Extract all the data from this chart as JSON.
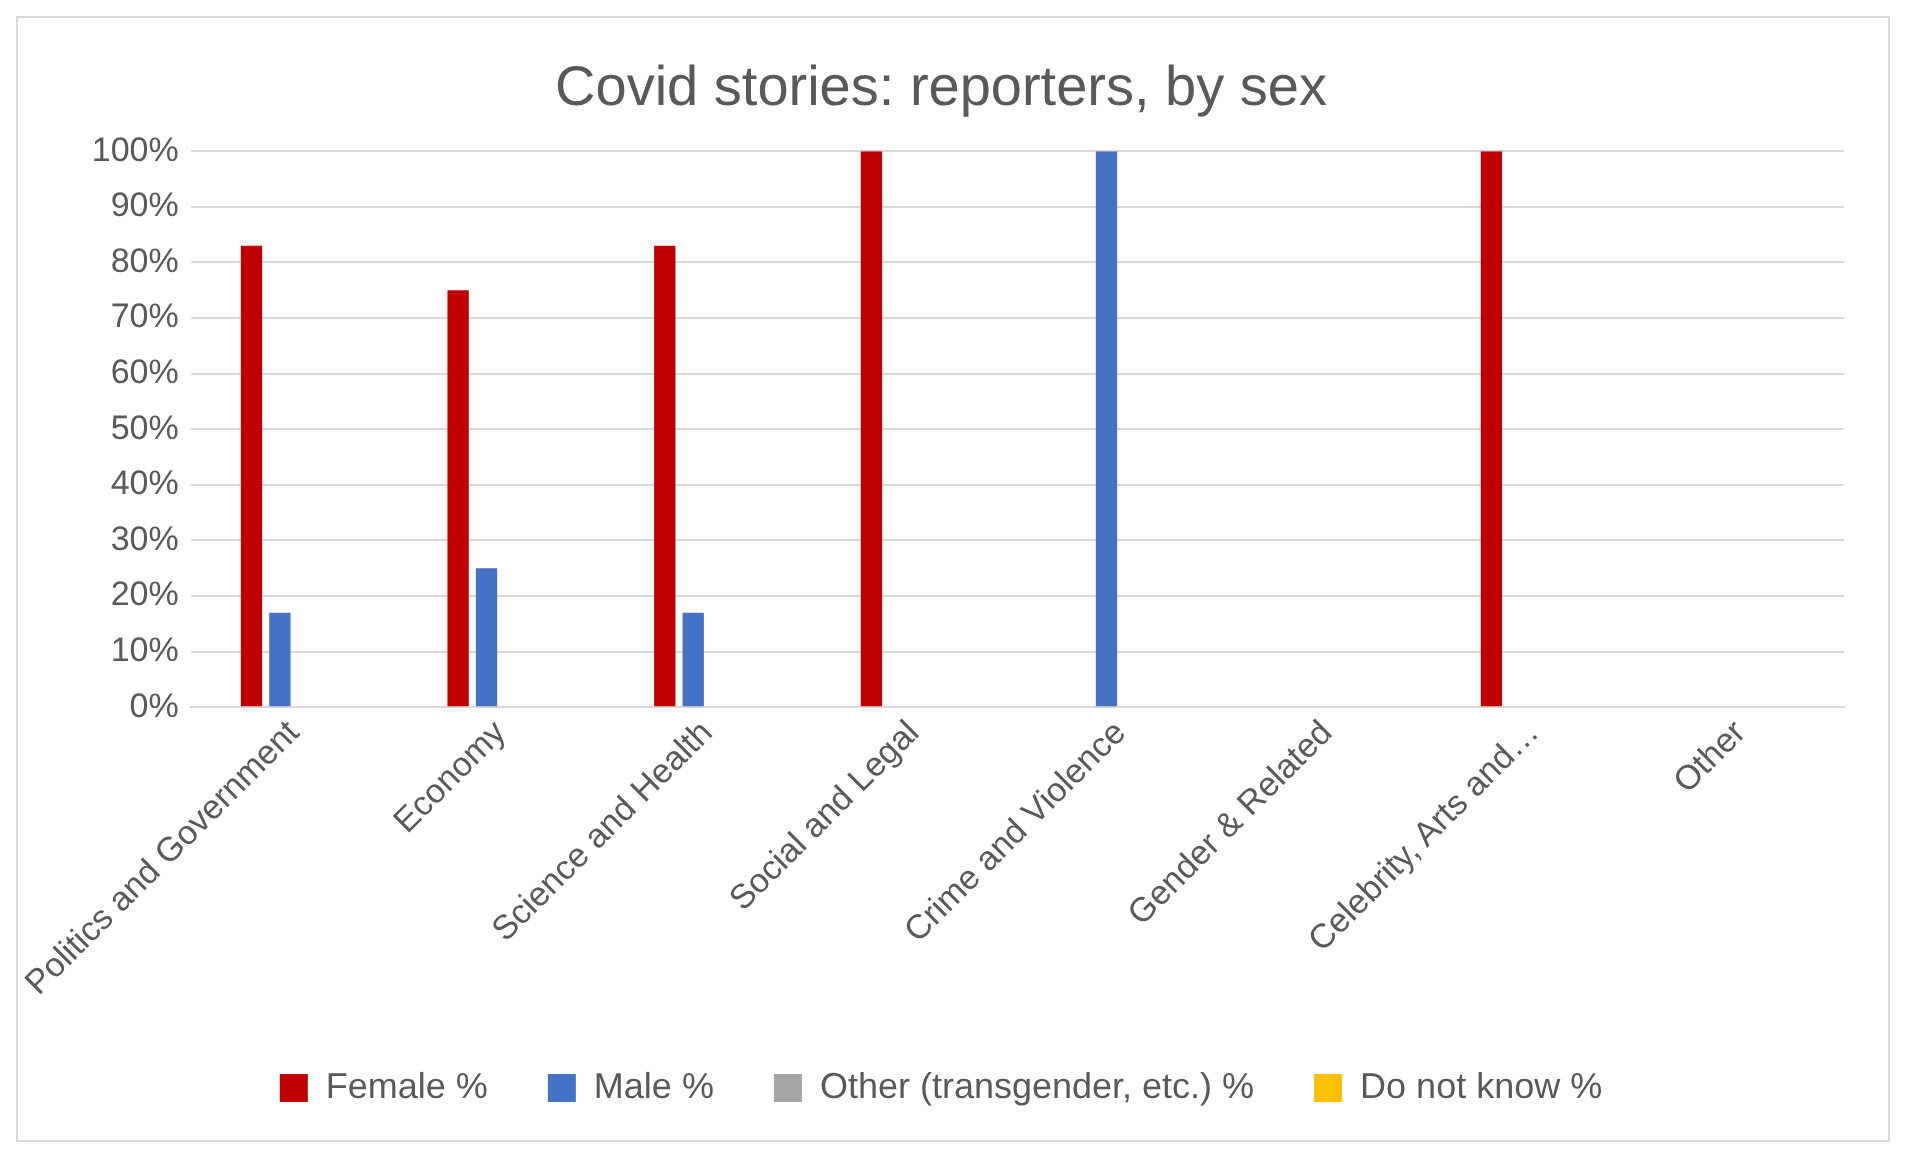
{
  "chart_data": {
    "type": "bar",
    "title": "Covid stories: reporters, by sex",
    "categories": [
      "Politics and Government",
      "Economy",
      "Science and Health",
      "Social and Legal",
      "Crime and Violence",
      "Gender & Related",
      "Celebrity, Arts and…",
      "Other"
    ],
    "series": [
      {
        "name": "Female %",
        "color": "#c00000",
        "values": [
          83,
          75,
          83,
          100,
          null,
          null,
          100,
          null
        ]
      },
      {
        "name": "Male %",
        "color": "#4472c4",
        "values": [
          17,
          25,
          17,
          null,
          100,
          null,
          null,
          null
        ]
      },
      {
        "name": "Other (transgender, etc.) %",
        "color": "#a5a5a5",
        "values": [
          null,
          null,
          null,
          null,
          null,
          null,
          null,
          null
        ]
      },
      {
        "name": "Do not know %",
        "color": "#ffc000",
        "values": [
          null,
          null,
          null,
          null,
          null,
          null,
          null,
          null
        ]
      }
    ],
    "ylim": [
      0,
      100
    ],
    "yticks": [
      {
        "value": 0,
        "label": "0%"
      },
      {
        "value": 10,
        "label": "10%"
      },
      {
        "value": 20,
        "label": "20%"
      },
      {
        "value": 30,
        "label": "30%"
      },
      {
        "value": 40,
        "label": "40%"
      },
      {
        "value": 50,
        "label": "50%"
      },
      {
        "value": 60,
        "label": "60%"
      },
      {
        "value": 70,
        "label": "70%"
      },
      {
        "value": 80,
        "label": "80%"
      },
      {
        "value": 90,
        "label": "90%"
      },
      {
        "value": 100,
        "label": "100%"
      }
    ],
    "grid": "y",
    "legend": "bottom"
  }
}
